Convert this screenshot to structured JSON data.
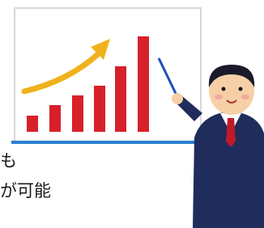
{
  "caption": {
    "lines": [
      "も",
      "が可能"
    ]
  }
}
